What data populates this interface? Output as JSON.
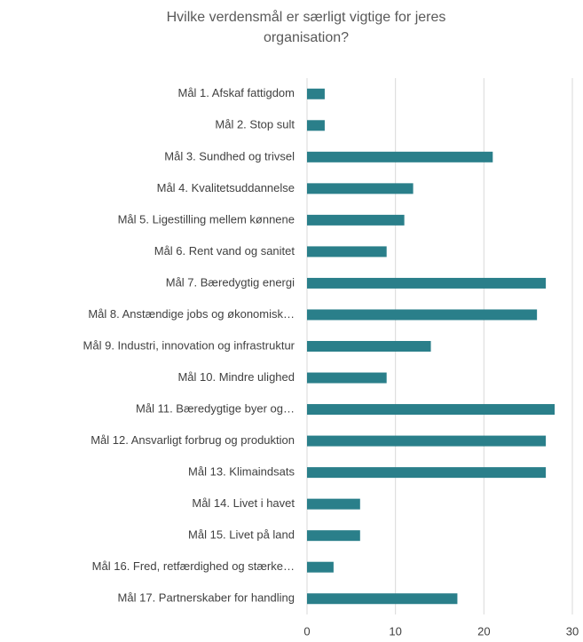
{
  "chart_data": {
    "type": "bar",
    "orientation": "horizontal",
    "title": "Hvilke verdensmål er særligt vigtige for jeres organisation?",
    "categories": [
      "Mål 1. Afskaf fattigdom",
      "Mål 2. Stop sult",
      "Mål 3. Sundhed og trivsel",
      "Mål 4. Kvalitetsuddannelse",
      "Mål 5. Ligestilling mellem kønnene",
      "Mål 6. Rent vand og sanitet",
      "Mål 7. Bæredygtig energi",
      "Mål 8. Anstændige jobs og økonomisk…",
      "Mål 9. Industri, innovation og infrastruktur",
      "Mål 10. Mindre ulighed",
      "Mål 11. Bæredygtige byer og…",
      "Mål 12. Ansvarligt forbrug og produktion",
      "Mål 13. Klimaindsats",
      "Mål 14. Livet i havet",
      "Mål 15. Livet på land",
      "Mål 16. Fred, retfærdighed og stærke…",
      "Mål 17. Partnerskaber for handling"
    ],
    "values": [
      2,
      2,
      21,
      12,
      11,
      9,
      27,
      26,
      14,
      9,
      28,
      27,
      27,
      6,
      6,
      3,
      17
    ],
    "color": "#2a7f8a",
    "xlim": [
      0,
      30
    ],
    "xticks": [
      0,
      10,
      20,
      30
    ],
    "grid": true
  }
}
